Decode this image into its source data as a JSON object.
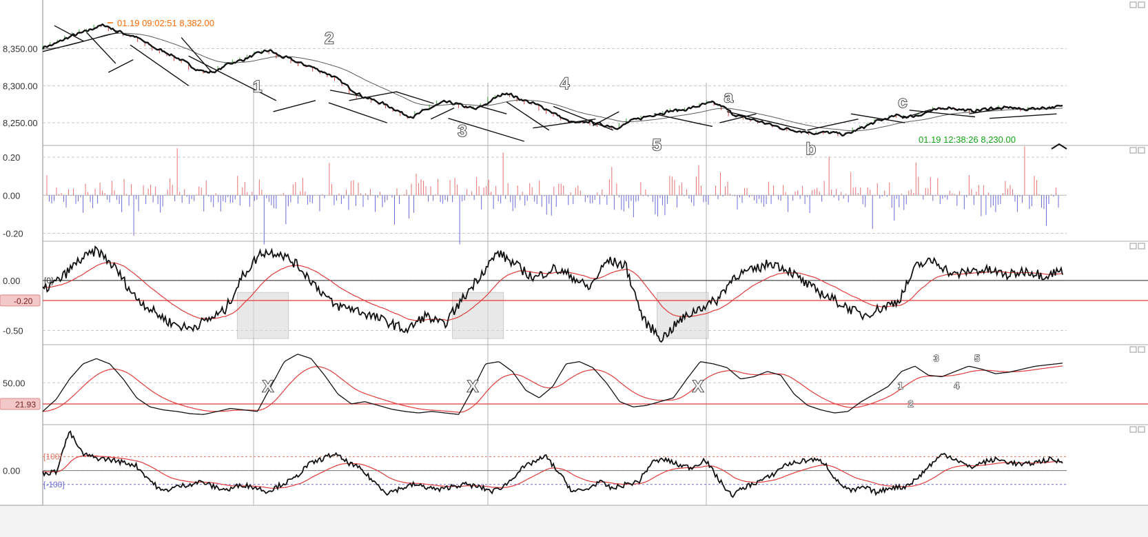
{
  "chart_data": [
    {
      "panel": "price",
      "type": "line",
      "yticks": [
        "8,350.00",
        "8,300.00",
        "8,250.00"
      ],
      "ytick_values": [
        8350,
        8300,
        8250
      ],
      "ylim": [
        8225,
        8410
      ],
      "x_count": 100,
      "series": [
        {
          "values": [
            8352,
            8355,
            8362,
            8368,
            8372,
            8378,
            8382,
            8375,
            8370,
            8366,
            8358,
            8350,
            8345,
            8338,
            8330,
            8322,
            8318,
            8320,
            8330,
            8333,
            8338,
            8344,
            8348,
            8340,
            8336,
            8330,
            8326,
            8320,
            8314,
            8305,
            8295,
            8286,
            8281,
            8276,
            8270,
            8262,
            8258,
            8266,
            8272,
            8278,
            8276,
            8272,
            8268,
            8275,
            8284,
            8291,
            8284,
            8279,
            8274,
            8268,
            8260,
            8252,
            8249,
            8252,
            8248,
            8246,
            8243,
            8252,
            8256,
            8260,
            8263,
            8266,
            8267,
            8270,
            8274,
            8277,
            8272,
            8262,
            8257,
            8254,
            8250,
            8246,
            8242,
            8240,
            8238,
            8236,
            8237,
            8236,
            8234,
            8240,
            8246,
            8252,
            8256,
            8260,
            8258,
            8260,
            8265,
            8268,
            8271,
            8268,
            8266,
            8267,
            8270,
            8269,
            8271,
            8268,
            8269,
            8270,
            8271,
            8272
          ]
        }
      ],
      "annotations": {
        "high_label": "01.19 09:02:51  8,382.00",
        "low_label": "01.19 12:38:26  8,230.00"
      },
      "wave_labels": [
        {
          "text": "1",
          "x": 21,
          "y": 8299
        },
        {
          "text": "2",
          "x": 28,
          "y": 8364
        },
        {
          "text": "3",
          "x": 41,
          "y": 8239
        },
        {
          "text": "4",
          "x": 51,
          "y": 8303
        },
        {
          "text": "5",
          "x": 60,
          "y": 8220
        },
        {
          "text": "a",
          "x": 67,
          "y": 8285
        },
        {
          "text": "b",
          "x": 75,
          "y": 8215
        },
        {
          "text": "c",
          "x": 84,
          "y": 8278
        }
      ]
    },
    {
      "panel": "histogram",
      "type": "bar",
      "yticks": [
        "0.20",
        "0.00",
        "-0.20"
      ],
      "ytick_values": [
        0.2,
        0,
        -0.2
      ],
      "ylim": [
        -0.22,
        0.24
      ],
      "colors": {
        "positive": "#e87070",
        "negative": "#6a6ad8"
      }
    },
    {
      "panel": "oscillator",
      "type": "line",
      "yticks": [
        "0.00",
        "-0.50"
      ],
      "ytick_values": [
        0,
        -0.5
      ],
      "ylim": [
        -0.6,
        0.35
      ],
      "zero_tag": "[0]",
      "level_tag": "-0.20",
      "level": -0.2,
      "shaded_boxes": [
        [
          19,
          24
        ],
        [
          40,
          45
        ],
        [
          60,
          65
        ]
      ]
    },
    {
      "panel": "stochastic",
      "type": "line",
      "yticks": [
        "50.00"
      ],
      "ytick_values": [
        50
      ],
      "ylim": [
        0,
        95
      ],
      "level_tag": "21.93",
      "level": 21.93,
      "x_labels": [
        {
          "text": "X",
          "x": 22
        },
        {
          "text": "X",
          "x": 42
        },
        {
          "text": "X",
          "x": 64
        }
      ],
      "wave_labels": [
        {
          "text": "1",
          "x": 83.5,
          "y": 42
        },
        {
          "text": "2",
          "x": 84.5,
          "y": 18
        },
        {
          "text": "3",
          "x": 87,
          "y": 78
        },
        {
          "text": "4",
          "x": 89,
          "y": 42
        },
        {
          "text": "5",
          "x": 91,
          "y": 78
        }
      ]
    },
    {
      "panel": "cci",
      "type": "line",
      "yticks": [
        "0.00"
      ],
      "ytick_values": [
        0
      ],
      "ylim": [
        -220,
        300
      ],
      "levels": [
        {
          "tag": "[100]",
          "value": 100,
          "color": "#e07060"
        },
        {
          "tag": "[-100]",
          "value": -100,
          "color": "#6a6ad8"
        }
      ]
    }
  ],
  "colors": {
    "main_line": "#111111",
    "signal_line": "#e23a3a",
    "grid": "#c8c8c8",
    "high_label": "#ff6a00",
    "low_label": "#13a313",
    "level_line": "#e23a3a"
  }
}
